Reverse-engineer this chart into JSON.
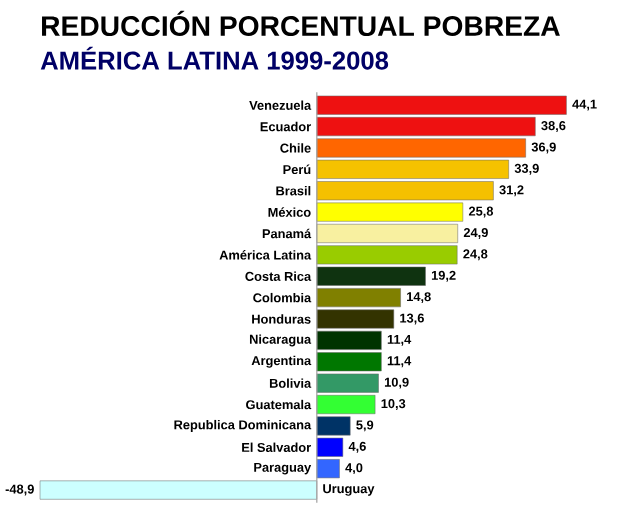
{
  "chart_data": {
    "type": "bar",
    "orientation": "horizontal",
    "title": "REDUCCIÓN PORCENTUAL POBREZA",
    "subtitle": "AMÉRICA LATINA 1999-2008",
    "categories": [
      "Venezuela",
      "Ecuador",
      "Chile",
      "Perú",
      "Brasil",
      "México",
      "Panamá",
      "América Latina",
      "Costa Rica",
      "Colombia",
      "Honduras",
      "Nicaragua",
      "Argentina",
      "Bolivia",
      "Guatemala",
      "Republica Dominicana",
      "El Salvador",
      "Paraguay",
      "Uruguay"
    ],
    "values": [
      44.1,
      38.6,
      36.9,
      33.9,
      31.2,
      25.8,
      24.9,
      24.8,
      19.2,
      14.8,
      13.6,
      11.4,
      11.4,
      10.9,
      10.3,
      5.9,
      4.6,
      4.0,
      -48.9
    ],
    "value_labels": [
      "44,1",
      "38,6",
      "36,9",
      "33,9",
      "31,2",
      "25,8",
      "24,9",
      "24,8",
      "19,2",
      "14,8",
      "13,6",
      "11,4",
      "11,4",
      "10,9",
      "10,3",
      "5,9",
      "4,6",
      "4,0",
      "-48,9"
    ],
    "colors": [
      "#ee1111",
      "#ee1111",
      "#ff6600",
      "#f5c200",
      "#f5c000",
      "#ffff00",
      "#f8f0a0",
      "#99cc00",
      "#0f3310",
      "#808000",
      "#333300",
      "#003300",
      "#007700",
      "#339966",
      "#33ff33",
      "#003366",
      "#0000ff",
      "#3366ff",
      "#ccffff"
    ]
  }
}
